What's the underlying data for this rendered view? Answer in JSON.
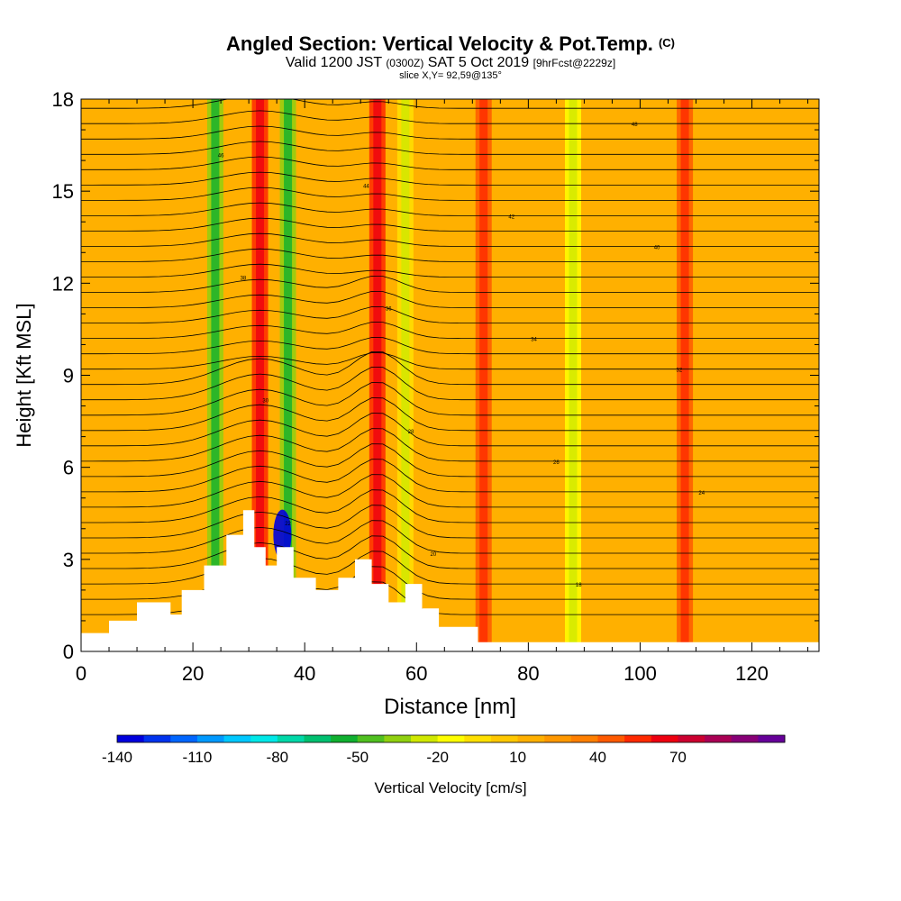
{
  "header": {
    "title": "Angled Section: Vertical Velocity & Pot.Temp.",
    "title_mark": "(C)",
    "subtitle_valid": "Valid 1200 JST",
    "subtitle_utc": "(0300Z)",
    "subtitle_date": "SAT 5 Oct 2019",
    "subtitle_fcst": "[9hrFcst@2229z]",
    "slice_info": "slice X,Y= 92,59@135°"
  },
  "chart_data": {
    "type": "heatmap",
    "xlabel": "Distance [nm]",
    "ylabel": "Height [Kft MSL]",
    "xlim": [
      0,
      132
    ],
    "ylim": [
      0,
      18
    ],
    "x_ticks": [
      0,
      20,
      40,
      60,
      80,
      100,
      120
    ],
    "y_ticks": [
      0,
      3,
      6,
      9,
      12,
      15,
      18
    ],
    "background_value_cm_s": 10,
    "velocity_bands": [
      {
        "x": 24,
        "value": -40
      },
      {
        "x": 32,
        "value": 50
      },
      {
        "x": 37,
        "value": -40
      },
      {
        "x": 53,
        "value": 50
      },
      {
        "x": 58,
        "value": -10
      },
      {
        "x": 72,
        "value": 40
      },
      {
        "x": 88,
        "value": -15
      },
      {
        "x": 108,
        "value": 40
      }
    ],
    "downdraft_core": {
      "x": 36,
      "z": 3.8,
      "value": -140
    },
    "terrain_profile": [
      [
        0,
        0.6
      ],
      [
        5,
        0.6
      ],
      [
        5,
        1
      ],
      [
        10,
        1
      ],
      [
        10,
        1.6
      ],
      [
        16,
        1.6
      ],
      [
        16,
        1.2
      ],
      [
        18,
        1.2
      ],
      [
        18,
        2
      ],
      [
        22,
        2
      ],
      [
        22,
        2.8
      ],
      [
        26,
        2.8
      ],
      [
        26,
        3.8
      ],
      [
        29,
        3.8
      ],
      [
        29,
        4.6
      ],
      [
        31,
        4.6
      ],
      [
        31,
        3.4
      ],
      [
        33,
        3.4
      ],
      [
        33,
        2.8
      ],
      [
        35,
        2.8
      ],
      [
        35,
        3.4
      ],
      [
        38,
        3.4
      ],
      [
        38,
        2.4
      ],
      [
        42,
        2.4
      ],
      [
        42,
        2
      ],
      [
        46,
        2
      ],
      [
        46,
        2.4
      ],
      [
        49,
        2.4
      ],
      [
        49,
        3
      ],
      [
        52,
        3
      ],
      [
        52,
        2.2
      ],
      [
        55,
        2.2
      ],
      [
        55,
        1.6
      ],
      [
        58,
        1.6
      ],
      [
        58,
        2.2
      ],
      [
        61,
        2.2
      ],
      [
        61,
        1.4
      ],
      [
        64,
        1.4
      ],
      [
        64,
        0.8
      ],
      [
        71,
        0.8
      ],
      [
        71,
        0.3
      ],
      [
        132,
        0.3
      ]
    ],
    "potential_temperature_label_values": [
      16,
      18,
      20,
      22,
      24,
      26,
      28,
      30,
      32,
      34,
      36,
      38,
      40,
      42,
      44,
      46,
      48
    ],
    "colorbar": {
      "label": "Vertical Velocity [cm/s]",
      "tick_labels": [
        "-140",
        "-110",
        "-80",
        "-50",
        "-20",
        "10",
        "40",
        "70"
      ],
      "colors": [
        "#0000dd",
        "#0033ee",
        "#0066ff",
        "#0099ff",
        "#00c8ff",
        "#00e8e8",
        "#00d8a8",
        "#00c070",
        "#10b030",
        "#50c020",
        "#90d010",
        "#d0e800",
        "#ffff00",
        "#ffe000",
        "#ffc800",
        "#ffb000",
        "#ff9800",
        "#ff7f00",
        "#ff5a00",
        "#ff2a00",
        "#ee0010",
        "#cc0030",
        "#aa0055",
        "#880077",
        "#660099"
      ]
    }
  }
}
